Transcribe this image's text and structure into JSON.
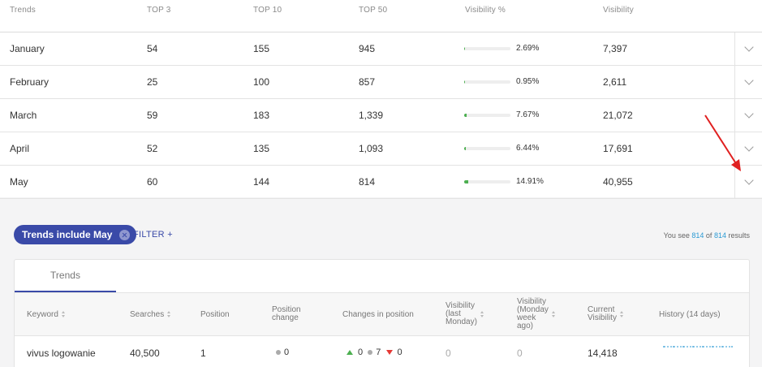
{
  "top_table": {
    "headers": {
      "trends": "Trends",
      "top3": "TOP 3",
      "top10": "TOP 10",
      "top50": "TOP 50",
      "visibility_pct": "Visibility %",
      "visibility": "Visibility"
    },
    "rows": [
      {
        "month": "January",
        "top3": "54",
        "top10": "155",
        "top50": "945",
        "pct": "2.69%",
        "fill": 0.0269,
        "visibility": "7,397"
      },
      {
        "month": "February",
        "top3": "25",
        "top10": "100",
        "top50": "857",
        "pct": "0.95%",
        "fill": 0.0095,
        "visibility": "2,611"
      },
      {
        "month": "March",
        "top3": "59",
        "top10": "183",
        "top50": "1,339",
        "pct": "7.67%",
        "fill": 0.0767,
        "visibility": "21,072"
      },
      {
        "month": "April",
        "top3": "52",
        "top10": "135",
        "top50": "1,093",
        "pct": "6.44%",
        "fill": 0.0644,
        "visibility": "17,691"
      },
      {
        "month": "May",
        "top3": "60",
        "top10": "144",
        "top50": "814",
        "pct": "14.91%",
        "fill": 0.1491,
        "visibility": "40,955"
      }
    ]
  },
  "filter_bar": {
    "chip_label": "Trends include May",
    "filter_label": "FILTER",
    "filter_plus": "+",
    "results_prefix": "You see",
    "results_shown": "814",
    "results_of": "of",
    "results_total": "814",
    "results_suffix": "results"
  },
  "panel": {
    "tab_label": "Trends",
    "headers": {
      "keyword": "Keyword",
      "searches": "Searches",
      "position": "Position",
      "position_change_1": "Position",
      "position_change_2": "change",
      "changes": "Changes in position",
      "vis_last_1": "Visibility",
      "vis_last_2": "(last",
      "vis_last_3": "Monday)",
      "vis_week_1": "Visibility",
      "vis_week_2": "(Monday",
      "vis_week_3": "week",
      "vis_week_4": "ago)",
      "current_vis_1": "Current",
      "current_vis_2": "Visibility",
      "history": "History (14 days)"
    },
    "row": {
      "keyword": "vivus logowanie",
      "searches": "40,500",
      "position": "1",
      "position_change": "0",
      "changes_up": "0",
      "changes_same": "7",
      "changes_down": "0",
      "vis_last_monday": "0",
      "vis_week_ago": "0",
      "current_visibility": "14,418"
    }
  },
  "colors": {
    "accent": "#3a4aa8",
    "bar_fill": "#4caf50",
    "link": "#2b9ad4",
    "annotation_arrow": "#e02020"
  }
}
